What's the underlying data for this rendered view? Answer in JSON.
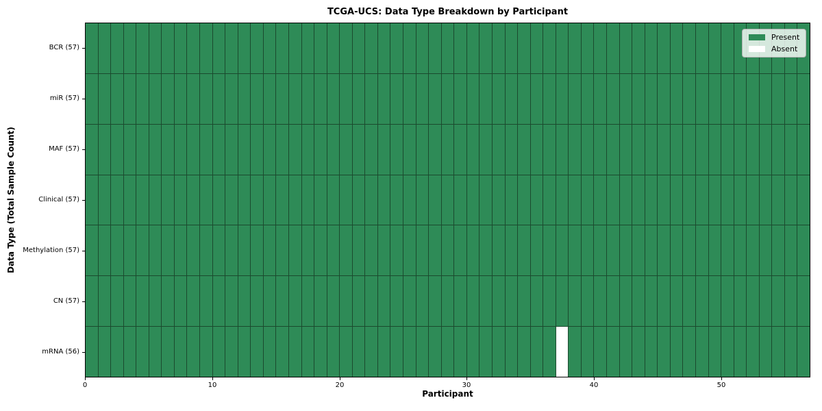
{
  "chart_data": {
    "type": "heatmap",
    "title": "TCGA-UCS: Data Type Breakdown by Participant",
    "xlabel": "Participant",
    "ylabel": "Data Type (Total Sample Count)",
    "x_ticks": [
      0,
      10,
      20,
      30,
      40,
      50
    ],
    "xlim": [
      0,
      57
    ],
    "n_participants": 57,
    "rows": [
      {
        "data_type": "BCR",
        "total_samples": 57,
        "label": "BCR (57)",
        "absent_participants": []
      },
      {
        "data_type": "miR",
        "total_samples": 57,
        "label": "miR (57)",
        "absent_participants": []
      },
      {
        "data_type": "MAF",
        "total_samples": 57,
        "label": "MAF (57)",
        "absent_participants": []
      },
      {
        "data_type": "Clinical",
        "total_samples": 57,
        "label": "Clinical (57)",
        "absent_participants": []
      },
      {
        "data_type": "Methylation",
        "total_samples": 57,
        "label": "Methylation (57)",
        "absent_participants": []
      },
      {
        "data_type": "CN",
        "total_samples": 57,
        "label": "CN (57)",
        "absent_participants": []
      },
      {
        "data_type": "mRNA",
        "total_samples": 56,
        "label": "mRNA (56)",
        "absent_participants": [
          37
        ]
      }
    ],
    "legend": {
      "position": "upper right",
      "entries": [
        {
          "label": "Present",
          "color": "#2e8b57"
        },
        {
          "label": "Absent",
          "color": "#ffffff"
        }
      ]
    },
    "colors": {
      "present": "#2e8b57",
      "absent": "#ffffff",
      "cell_edge": "#1b4a2e",
      "axis": "#000000",
      "legend_border": "#b0b0b0"
    }
  }
}
